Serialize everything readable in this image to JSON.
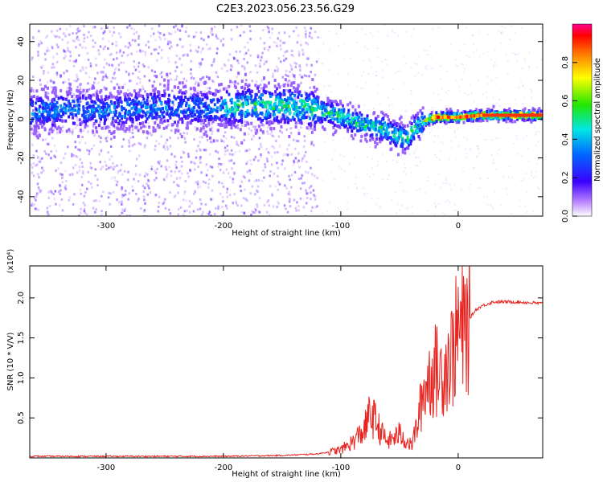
{
  "title": "C2E3.2023.056.23.56.G29",
  "colorbar": {
    "label": "Normalized spectral amplitude",
    "ticks": [
      "0.0",
      "0.2",
      "0.4",
      "0.6",
      "0.8"
    ]
  },
  "chart_data": [
    {
      "type": "heatmap",
      "xlabel": "Height of straight line (km)",
      "ylabel": "Frequency (Hz)",
      "xlim": [
        -365,
        72
      ],
      "ylim": [
        -50,
        49
      ],
      "xticks": [
        -300,
        -200,
        -100,
        0
      ],
      "yticks": [
        -40,
        -20,
        0,
        20,
        40
      ],
      "colorscale": "rainbow",
      "ridge": {
        "x": [
          -365,
          -330,
          -300,
          -260,
          -230,
          -200,
          -180,
          -150,
          -130,
          -110,
          -95,
          -80,
          -65,
          -55,
          -45,
          -38,
          -30,
          -20,
          -10,
          0,
          20,
          40,
          72
        ],
        "y": [
          4,
          5,
          4,
          6,
          6,
          6,
          7,
          7,
          6,
          3,
          0,
          -3,
          -5,
          -8,
          -10,
          -5,
          -1,
          1,
          1,
          1,
          2,
          2,
          2
        ]
      }
    },
    {
      "type": "line",
      "xlabel": "Height of straight line (km)",
      "ylabel": "SNR (10 * V/V)",
      "yscale_label": "(x10⁴)",
      "xlim": [
        -365,
        72
      ],
      "ylim": [
        0,
        2.4
      ],
      "xticks": [
        -300,
        -200,
        -100,
        0
      ],
      "yticks": [
        "0.5",
        "1.0",
        "1.5",
        "2.0"
      ],
      "series": [
        {
          "color": "#e8231f",
          "x": [
            -365,
            -300,
            -250,
            -200,
            -150,
            -120,
            -100,
            -90,
            -80,
            -75,
            -70,
            -65,
            -60,
            -50,
            -40,
            -35,
            -30,
            -25,
            -20,
            -15,
            -10,
            -5,
            0,
            5,
            10,
            15,
            20,
            30,
            40,
            50,
            60,
            72
          ],
          "y": [
            0.02,
            0.02,
            0.02,
            0.02,
            0.03,
            0.05,
            0.1,
            0.2,
            0.35,
            0.55,
            0.45,
            0.3,
            0.2,
            0.3,
            0.15,
            0.4,
            0.8,
            1.0,
            1.1,
            1.05,
            1.2,
            1.3,
            1.6,
            1.55,
            1.75,
            1.85,
            1.9,
            1.95,
            1.95,
            1.95,
            1.94,
            1.93
          ]
        }
      ]
    }
  ]
}
